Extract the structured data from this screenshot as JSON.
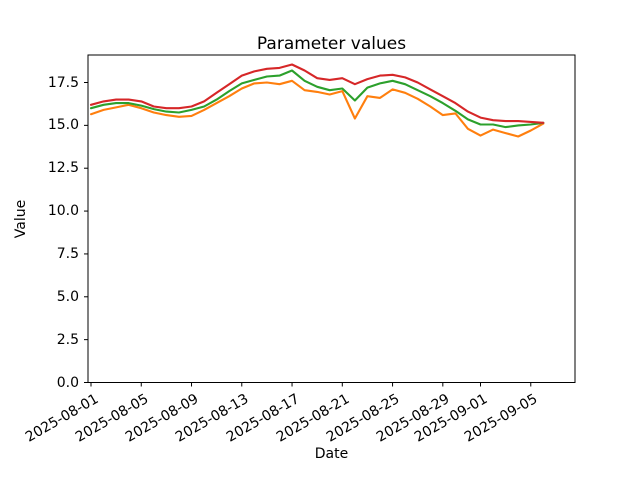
{
  "figure": {
    "background": "#ffffff",
    "spine_color": "#000000"
  },
  "chart_data": {
    "type": "line",
    "title": "Parameter values",
    "xlabel": "Date",
    "ylabel": "Value",
    "grid": false,
    "legend": null,
    "ylim": [
      0.0,
      19.1
    ],
    "yticks": [
      "0.0",
      "2.5",
      "5.0",
      "7.5",
      "10.0",
      "12.5",
      "15.0",
      "17.5"
    ],
    "ytick_values": [
      0.0,
      2.5,
      5.0,
      7.5,
      10.0,
      12.5,
      15.0,
      17.5
    ],
    "xtick_labels": [
      "2025-08-01",
      "2025-08-05",
      "2025-08-09",
      "2025-08-13",
      "2025-08-17",
      "2025-08-21",
      "2025-08-25",
      "2025-08-29",
      "2025-09-01",
      "2025-09-05"
    ],
    "xtick_indices": [
      0,
      4,
      8,
      12,
      16,
      20,
      24,
      28,
      31,
      35
    ],
    "x": [
      "2025-08-01",
      "2025-08-02",
      "2025-08-03",
      "2025-08-04",
      "2025-08-05",
      "2025-08-06",
      "2025-08-07",
      "2025-08-08",
      "2025-08-09",
      "2025-08-10",
      "2025-08-11",
      "2025-08-12",
      "2025-08-13",
      "2025-08-14",
      "2025-08-15",
      "2025-08-16",
      "2025-08-17",
      "2025-08-18",
      "2025-08-19",
      "2025-08-20",
      "2025-08-21",
      "2025-08-22",
      "2025-08-23",
      "2025-08-24",
      "2025-08-25",
      "2025-08-26",
      "2025-08-27",
      "2025-08-28",
      "2025-08-29",
      "2025-08-30",
      "2025-08-31",
      "2025-09-01",
      "2025-09-02",
      "2025-09-03",
      "2025-09-04",
      "2025-09-05",
      "2025-09-06"
    ],
    "series": [
      {
        "name": "orange",
        "color": "#ff7f0e",
        "values": [
          15.65,
          15.9,
          16.05,
          16.2,
          16.0,
          15.75,
          15.6,
          15.5,
          15.55,
          15.9,
          16.3,
          16.7,
          17.15,
          17.45,
          17.5,
          17.4,
          17.6,
          17.05,
          16.95,
          16.8,
          17.0,
          15.4,
          16.7,
          16.6,
          17.1,
          16.9,
          16.55,
          16.1,
          15.6,
          15.7,
          14.8,
          14.4,
          14.75,
          14.55,
          14.35,
          14.7,
          15.1
        ]
      },
      {
        "name": "green",
        "color": "#2ca02c",
        "values": [
          16.0,
          16.2,
          16.3,
          16.3,
          16.15,
          15.95,
          15.8,
          15.75,
          15.9,
          16.1,
          16.5,
          17.0,
          17.45,
          17.65,
          17.85,
          17.9,
          18.2,
          17.6,
          17.25,
          17.05,
          17.15,
          16.45,
          17.2,
          17.45,
          17.6,
          17.4,
          17.05,
          16.7,
          16.3,
          15.85,
          15.35,
          15.05,
          15.05,
          14.9,
          15.0,
          15.05,
          15.15
        ]
      },
      {
        "name": "red",
        "color": "#d62728",
        "values": [
          16.2,
          16.4,
          16.5,
          16.5,
          16.4,
          16.1,
          16.0,
          16.0,
          16.1,
          16.4,
          16.9,
          17.4,
          17.9,
          18.15,
          18.3,
          18.35,
          18.55,
          18.2,
          17.75,
          17.65,
          17.75,
          17.4,
          17.7,
          17.9,
          17.95,
          17.8,
          17.5,
          17.1,
          16.7,
          16.3,
          15.8,
          15.45,
          15.3,
          15.25,
          15.25,
          15.2,
          15.15
        ]
      }
    ]
  }
}
